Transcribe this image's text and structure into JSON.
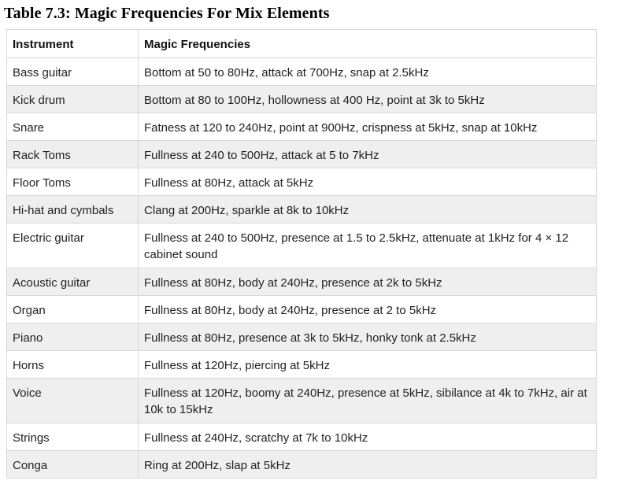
{
  "title": "Table 7.3: Magic Frequencies For Mix Elements",
  "table": {
    "headers": [
      "Instrument",
      "Magic Frequencies"
    ],
    "rows": [
      [
        "Bass guitar",
        "Bottom at 50 to 80Hz, attack at 700Hz, snap at 2.5kHz"
      ],
      [
        "Kick drum",
        "Bottom at 80 to 100Hz, hollowness at 400 Hz, point at 3k to 5kHz"
      ],
      [
        "Snare",
        "Fatness at 120 to 240Hz, point at 900Hz, crispness at  5kHz, snap at 10kHz"
      ],
      [
        "Rack Toms",
        "Fullness at 240 to 500Hz, attack at 5 to 7kHz"
      ],
      [
        "Floor Toms",
        "Fullness at 80Hz, attack at 5kHz"
      ],
      [
        "Hi-hat and cymbals",
        "Clang at 200Hz, sparkle at 8k to 10kHz"
      ],
      [
        "Electric guitar",
        "Fullness at 240 to 500Hz, presence at 1.5 to 2.5kHz, attenuate at 1kHz for 4 × 12 cabinet sound"
      ],
      [
        "Acoustic guitar",
        "Fullness at 80Hz, body at 240Hz, presence at 2k to 5kHz"
      ],
      [
        "Organ",
        "Fullness at 80Hz, body at 240Hz, presence at 2 to 5kHz"
      ],
      [
        "Piano",
        "Fullness at 80Hz, presence at 3k to 5kHz, honky tonk at 2.5kHz"
      ],
      [
        "Horns",
        "Fullness at 120Hz, piercing at 5kHz"
      ],
      [
        "Voice",
        "Fullness at 120Hz, boomy at 240Hz, presence at 5kHz, sibilance at 4k to 7kHz, air at 10k to 15kHz"
      ],
      [
        "Strings",
        "Fullness at 240Hz, scratchy at 7k to 10kHz"
      ],
      [
        "Conga",
        "Ring at 200Hz, slap at 5kHz"
      ]
    ]
  }
}
